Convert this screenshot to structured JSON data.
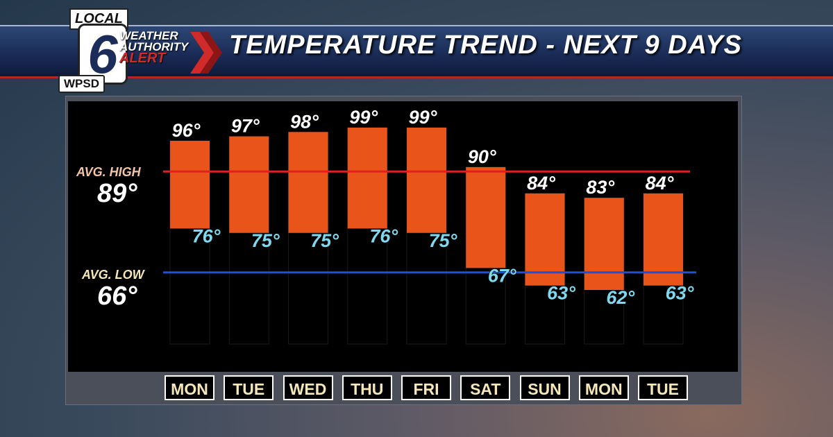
{
  "header": {
    "logo_local": "LOCAL",
    "logo_number": "6",
    "logo_station": "WPSD",
    "alert_line1": "WEATHER",
    "alert_line2": "AUTHORITY",
    "alert_line3": "ALERT",
    "title": "TEMPERATURE TREND - NEXT 9 DAYS"
  },
  "averages": {
    "high_label": "AVG. HIGH",
    "high_value": "89°",
    "low_label": "AVG. LOW",
    "low_value": "66°"
  },
  "colors": {
    "bar": "#e8541a",
    "avg_high_line": "#e02020",
    "avg_low_line": "#1f4fd8",
    "high_text": "#ffffff",
    "low_text": "#7fd8ee"
  },
  "chart_data": {
    "type": "bar",
    "categories": [
      "MON",
      "TUE",
      "WED",
      "THU",
      "FRI",
      "SAT",
      "SUN",
      "MON",
      "TUE"
    ],
    "series": [
      {
        "name": "High",
        "values": [
          96,
          97,
          98,
          99,
          99,
          90,
          84,
          83,
          84
        ]
      },
      {
        "name": "Low",
        "values": [
          76,
          75,
          75,
          76,
          75,
          67,
          63,
          62,
          63
        ]
      }
    ],
    "high_labels": [
      "96°",
      "97°",
      "98°",
      "99°",
      "99°",
      "90°",
      "84°",
      "83°",
      "84°"
    ],
    "low_labels": [
      "76°",
      "75°",
      "75°",
      "76°",
      "75°",
      "67°",
      "63°",
      "62°",
      "63°"
    ],
    "avg_high": 89,
    "avg_low": 66,
    "title": "TEMPERATURE TREND - NEXT 9 DAYS",
    "xlabel": "",
    "ylabel": "",
    "grid": false
  }
}
